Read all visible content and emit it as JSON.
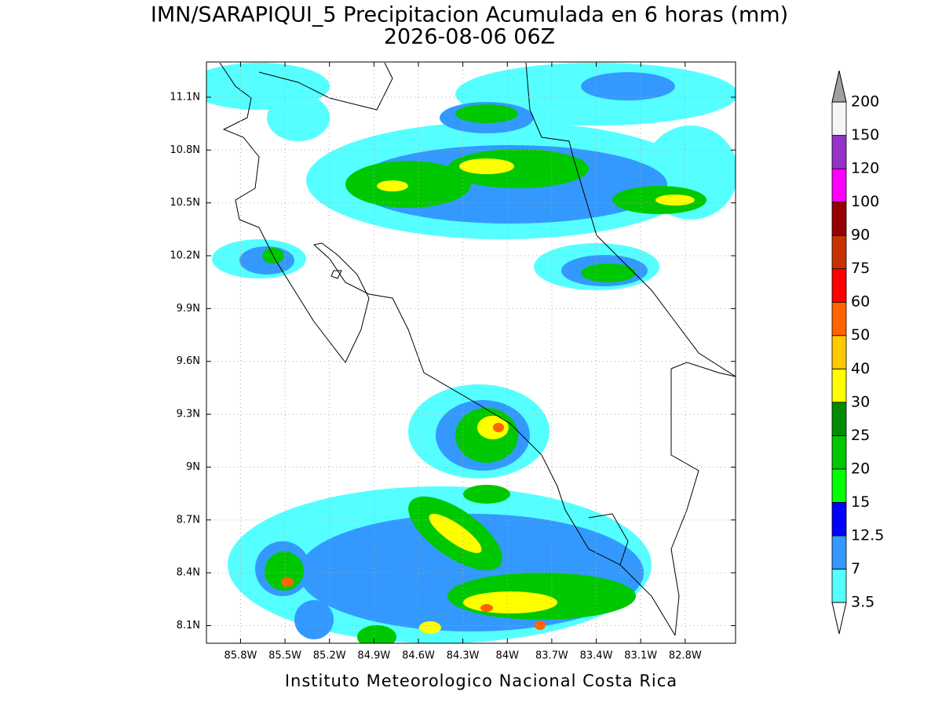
{
  "title": "IMN/SARAPIQUI_5 Precipitacion Acumulada en 6 horas (mm)",
  "subtitle": "2026-08-06 06Z",
  "footer": "Instituto Meteorologico Nacional Costa Rica",
  "map": {
    "xlim": [
      -86.03,
      -82.46
    ],
    "ylim": [
      8.0,
      11.3
    ],
    "xticks": [
      {
        "value": -85.8,
        "label": "85.8W"
      },
      {
        "value": -85.5,
        "label": "85.5W"
      },
      {
        "value": -85.2,
        "label": "85.2W"
      },
      {
        "value": -84.9,
        "label": "84.9W"
      },
      {
        "value": -84.6,
        "label": "84.6W"
      },
      {
        "value": -84.3,
        "label": "84.3W"
      },
      {
        "value": -84.0,
        "label": "84W"
      },
      {
        "value": -83.7,
        "label": "83.7W"
      },
      {
        "value": -83.4,
        "label": "83.4W"
      },
      {
        "value": -83.1,
        "label": "83.1W"
      },
      {
        "value": -82.8,
        "label": "82.8W"
      }
    ],
    "yticks": [
      {
        "value": 8.1,
        "label": "8.1N"
      },
      {
        "value": 8.4,
        "label": "8.4N"
      },
      {
        "value": 8.7,
        "label": "8.7N"
      },
      {
        "value": 9.0,
        "label": "9N"
      },
      {
        "value": 9.3,
        "label": "9.3N"
      },
      {
        "value": 9.6,
        "label": "9.6N"
      },
      {
        "value": 9.9,
        "label": "9.9N"
      },
      {
        "value": 10.2,
        "label": "10.2N"
      },
      {
        "value": 10.5,
        "label": "10.5N"
      },
      {
        "value": 10.8,
        "label": "10.8N"
      },
      {
        "value": 11.1,
        "label": "11.1N"
      }
    ],
    "grid": true
  },
  "colorbar": {
    "levels": [
      3.5,
      7,
      12.5,
      15,
      20,
      25,
      30,
      40,
      50,
      60,
      75,
      90,
      100,
      120,
      150,
      200
    ],
    "colors": [
      "#55ffff",
      "#3399ff",
      "#0000ff",
      "#00ff00",
      "#00c800",
      "#008c00",
      "#ffff00",
      "#ffc800",
      "#ff6400",
      "#ff0000",
      "#c83200",
      "#960000",
      "#ff00ff",
      "#9632c8",
      "#f5f5f5"
    ],
    "over_color": "#a0a0a0",
    "under_color": "#ffffff"
  }
}
